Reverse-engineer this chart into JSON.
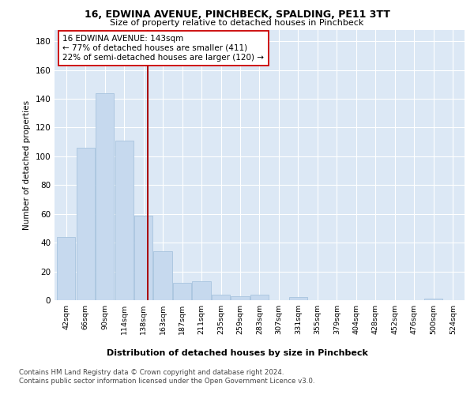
{
  "title1": "16, EDWINA AVENUE, PINCHBECK, SPALDING, PE11 3TT",
  "title2": "Size of property relative to detached houses in Pinchbeck",
  "xlabel": "Distribution of detached houses by size in Pinchbeck",
  "ylabel": "Number of detached properties",
  "categories": [
    "42sqm",
    "66sqm",
    "90sqm",
    "114sqm",
    "138sqm",
    "163sqm",
    "187sqm",
    "211sqm",
    "235sqm",
    "259sqm",
    "283sqm",
    "307sqm",
    "331sqm",
    "355sqm",
    "379sqm",
    "404sqm",
    "428sqm",
    "452sqm",
    "476sqm",
    "500sqm",
    "524sqm"
  ],
  "values": [
    44,
    106,
    144,
    111,
    59,
    34,
    12,
    13,
    4,
    3,
    4,
    0,
    2,
    0,
    0,
    0,
    0,
    0,
    0,
    1,
    0
  ],
  "bar_color": "#c6d9ee",
  "bar_edge_color": "#a8c4de",
  "vline_x": 4.21,
  "vline_color": "#aa0000",
  "annotation_text": "16 EDWINA AVENUE: 143sqm\n← 77% of detached houses are smaller (411)\n22% of semi-detached houses are larger (120) →",
  "annotation_box_color": "#ffffff",
  "annotation_box_edge": "#cc0000",
  "ylim": [
    0,
    188
  ],
  "yticks": [
    0,
    20,
    40,
    60,
    80,
    100,
    120,
    140,
    160,
    180
  ],
  "bg_color": "#dce8f5",
  "footer": "Contains HM Land Registry data © Crown copyright and database right 2024.\nContains public sector information licensed under the Open Government Licence v3.0."
}
